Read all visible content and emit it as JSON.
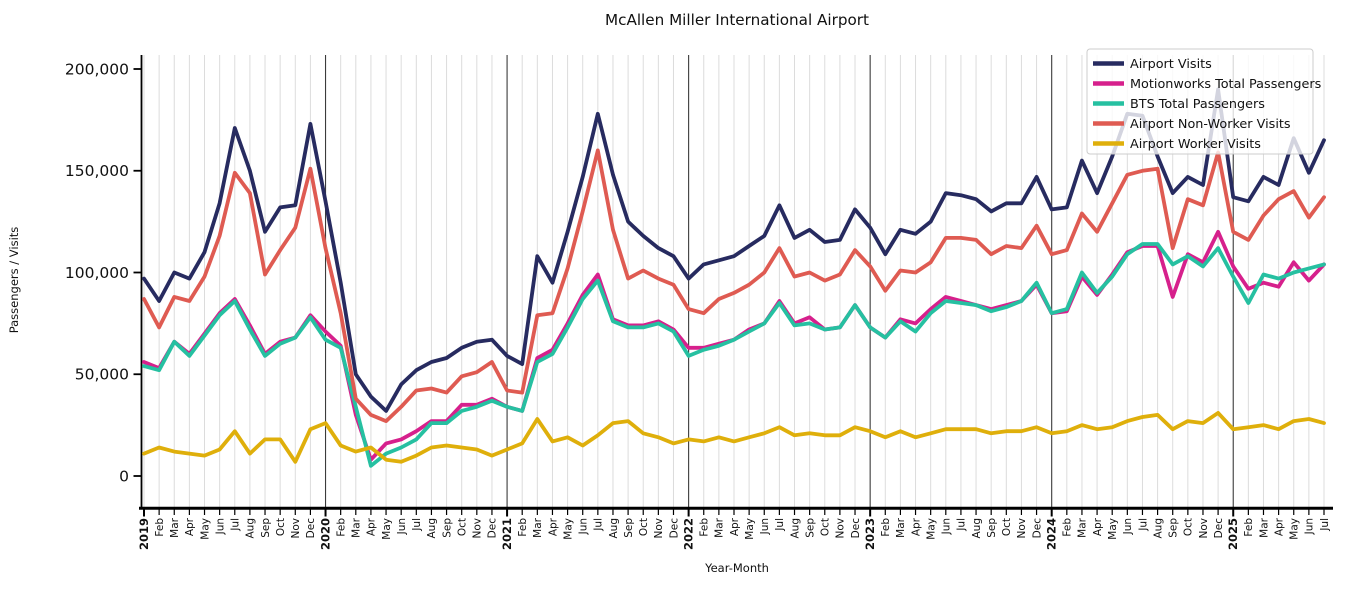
{
  "chart_data": {
    "type": "line",
    "title": "McAllen Miller International Airport",
    "xlabel": "Year-Month",
    "ylabel": "Passengers / Visits",
    "ylim": [
      0,
      200000
    ],
    "yticks": [
      0,
      50000,
      100000,
      150000,
      200000
    ],
    "ytick_labels": [
      "0",
      "50,000",
      "100,000",
      "150,000",
      "200,000"
    ],
    "grid": "vertical monthly gridlines, darker line at each January",
    "legend_position": "upper right",
    "year_line_indices": [
      12,
      24,
      36,
      48,
      60,
      72
    ],
    "x_labels": [
      "2019",
      "Feb",
      "Mar",
      "Apr",
      "May",
      "Jun",
      "Jul",
      "Aug",
      "Sep",
      "Oct",
      "Nov",
      "Dec",
      "2020",
      "Feb",
      "Mar",
      "Apr",
      "May",
      "Jun",
      "Jul",
      "Aug",
      "Sep",
      "Oct",
      "Nov",
      "Dec",
      "2021",
      "Feb",
      "Mar",
      "Apr",
      "May",
      "Jun",
      "Jul",
      "Aug",
      "Sep",
      "Oct",
      "Nov",
      "Dec",
      "2022",
      "Feb",
      "Mar",
      "Apr",
      "May",
      "Jun",
      "Jul",
      "Aug",
      "Sep",
      "Oct",
      "Nov",
      "Dec",
      "2023",
      "Feb",
      "Mar",
      "Apr",
      "May",
      "Jun",
      "Jul",
      "Aug",
      "Sep",
      "Oct",
      "Nov",
      "Dec",
      "2024",
      "Feb",
      "Mar",
      "Apr",
      "May",
      "Jun",
      "Jul",
      "Aug",
      "Sep",
      "Oct",
      "Nov",
      "Dec",
      "2025",
      "Feb",
      "Mar",
      "Apr",
      "May",
      "Jun",
      "Jul"
    ],
    "series": [
      {
        "name": "Airport Visits",
        "color": "#272b60",
        "values": [
          97000,
          86000,
          100000,
          97000,
          110000,
          134000,
          171000,
          150000,
          120000,
          132000,
          133000,
          173000,
          135000,
          95000,
          50000,
          39000,
          32000,
          45000,
          52000,
          56000,
          58000,
          63000,
          66000,
          67000,
          59000,
          55000,
          108000,
          95000,
          120000,
          147000,
          178000,
          148000,
          125000,
          118000,
          112000,
          108000,
          97000,
          104000,
          106000,
          108000,
          113000,
          118000,
          133000,
          117000,
          121000,
          115000,
          116000,
          131000,
          122000,
          109000,
          121000,
          119000,
          125000,
          139000,
          138000,
          136000,
          130000,
          134000,
          134000,
          147000,
          131000,
          132000,
          155000,
          139000,
          157000,
          178000,
          177000,
          157000,
          139000,
          147000,
          143000,
          190000,
          137000,
          135000,
          147000,
          143000,
          166000,
          149000,
          165000
        ]
      },
      {
        "name": "Motionworks Total Passengers",
        "color": "#d6208c",
        "values": [
          56000,
          53000,
          66000,
          60000,
          70000,
          80000,
          87000,
          74000,
          60000,
          66000,
          68000,
          79000,
          71000,
          64000,
          30000,
          8000,
          16000,
          18000,
          22000,
          27000,
          27000,
          35000,
          35000,
          38000,
          34000,
          32000,
          58000,
          62000,
          75000,
          89000,
          99000,
          77000,
          74000,
          74000,
          76000,
          72000,
          63000,
          63000,
          65000,
          67000,
          72000,
          75000,
          86000,
          75000,
          78000,
          72000,
          73000,
          84000,
          73000,
          68000,
          77000,
          75000,
          82000,
          88000,
          86000,
          84000,
          82000,
          84000,
          86000,
          94000,
          80000,
          81000,
          98000,
          89000,
          99000,
          110000,
          113000,
          113000,
          88000,
          109000,
          105000,
          120000,
          103000,
          92000,
          95000,
          93000,
          105000,
          96000,
          104000
        ]
      },
      {
        "name": "BTS Total Passengers",
        "color": "#26c0a1",
        "values": [
          54000,
          52000,
          66000,
          59000,
          69000,
          79000,
          86000,
          72000,
          59000,
          65000,
          68000,
          78000,
          67000,
          63000,
          34000,
          5000,
          11000,
          14000,
          18000,
          26000,
          26000,
          32000,
          34000,
          37000,
          34000,
          32000,
          56000,
          60000,
          73000,
          87000,
          96000,
          76000,
          73000,
          73000,
          75000,
          71000,
          59000,
          62000,
          64000,
          67000,
          71000,
          75000,
          85000,
          74000,
          75000,
          72000,
          73000,
          84000,
          73000,
          68000,
          76000,
          71000,
          80000,
          86000,
          85000,
          84000,
          81000,
          83000,
          86000,
          95000,
          80000,
          82000,
          100000,
          90000,
          98000,
          109000,
          114000,
          114000,
          104000,
          108000,
          103000,
          112000,
          98000,
          85000,
          99000,
          97000,
          100000,
          102000,
          104000
        ]
      },
      {
        "name": "Airport Non-Worker Visits",
        "color": "#df5b52",
        "values": [
          87000,
          73000,
          88000,
          86000,
          98000,
          118000,
          149000,
          139000,
          99000,
          111000,
          122000,
          151000,
          112000,
          80000,
          38000,
          30000,
          27000,
          34000,
          42000,
          43000,
          41000,
          49000,
          51000,
          56000,
          42000,
          41000,
          79000,
          80000,
          102000,
          130000,
          160000,
          121000,
          97000,
          101000,
          97000,
          94000,
          82000,
          80000,
          87000,
          90000,
          94000,
          100000,
          112000,
          98000,
          100000,
          96000,
          99000,
          111000,
          103000,
          91000,
          101000,
          100000,
          105000,
          117000,
          117000,
          116000,
          109000,
          113000,
          112000,
          123000,
          109000,
          111000,
          129000,
          120000,
          134000,
          148000,
          150000,
          151000,
          112000,
          136000,
          133000,
          159000,
          120000,
          116000,
          128000,
          136000,
          140000,
          127000,
          137000
        ]
      },
      {
        "name": "Airport Worker Visits",
        "color": "#dfaf0b",
        "values": [
          11000,
          14000,
          12000,
          11000,
          10000,
          13000,
          22000,
          11000,
          18000,
          18000,
          7000,
          23000,
          26000,
          15000,
          12000,
          14000,
          8000,
          7000,
          10000,
          14000,
          15000,
          14000,
          13000,
          10000,
          13000,
          16000,
          28000,
          17000,
          19000,
          15000,
          20000,
          26000,
          27000,
          21000,
          19000,
          16000,
          18000,
          17000,
          19000,
          17000,
          19000,
          21000,
          24000,
          20000,
          21000,
          20000,
          20000,
          24000,
          22000,
          19000,
          22000,
          19000,
          21000,
          23000,
          23000,
          23000,
          21000,
          22000,
          22000,
          24000,
          21000,
          22000,
          25000,
          23000,
          24000,
          27000,
          29000,
          30000,
          23000,
          27000,
          26000,
          31000,
          23000,
          24000,
          25000,
          23000,
          27000,
          28000,
          26000
        ]
      }
    ]
  }
}
